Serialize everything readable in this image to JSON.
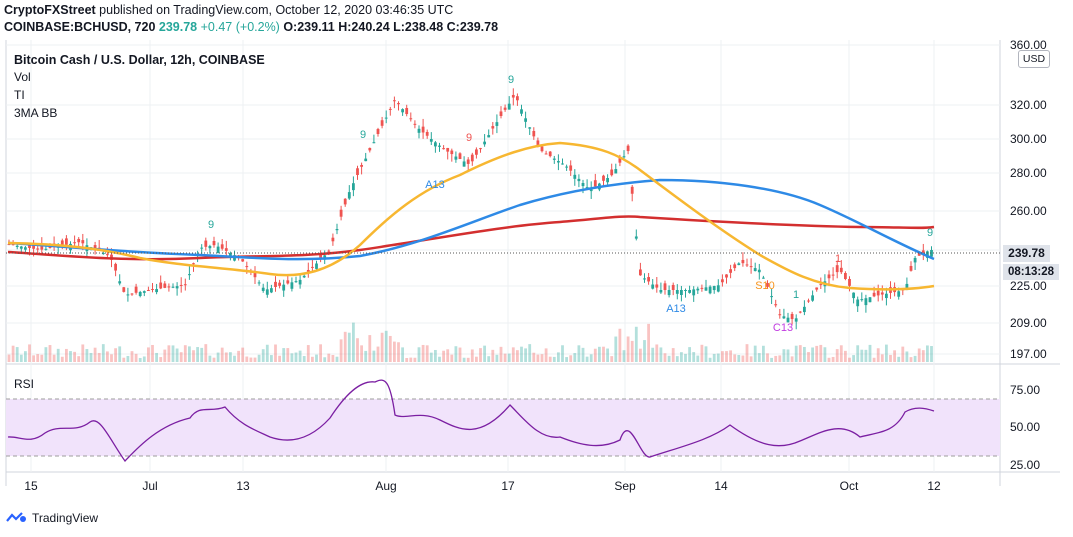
{
  "header": {
    "publisher": "CryptoFXStreet",
    "published_text": "published on TradingView.com, October 12, 2020 03:46:35 UTC",
    "symbol_line": "COINBASE:BCHUSD, 720",
    "last": "239.78",
    "change": "+0.47 (+0.2%)",
    "ohlc": "O:239.11 H:240.24 L:238.48 C:239.78"
  },
  "chart_title": "Bitcoin Cash / U.S. Dollar, 12h, COINBASE",
  "indicators": [
    "Vol",
    "TI",
    "3MA BB"
  ],
  "rsi_title": "RSI",
  "currency_badge": "USD",
  "price_label": "239.78",
  "countdown_label": "08:13:28",
  "brand": "TradingView",
  "colors": {
    "up": "#26a69a",
    "down": "#ef5350",
    "ma_fast": "#f7b731",
    "ma_mid": "#2e8ae6",
    "ma_slow": "#d32f2f",
    "rsi_line": "#7b1fa2",
    "rsi_band": "#f1e3fb",
    "grid": "#eef0f3"
  },
  "chart_data": {
    "type": "candlestick",
    "price_axis": {
      "ticks": [
        "197.00",
        "209.00",
        "225.00",
        "240.00",
        "260.00",
        "280.00",
        "300.00",
        "320.00",
        "360.00"
      ],
      "log_scale": true
    },
    "x_ticks": [
      "15",
      "Jul",
      "13",
      "Aug",
      "17",
      "Sep",
      "14",
      "Oct",
      "12"
    ],
    "rsi_axis": {
      "ticks": [
        "25.00",
        "50.00",
        "75.00"
      ],
      "band": [
        30,
        70
      ]
    },
    "annotations": [
      {
        "label": "9",
        "color": "#26a69a"
      },
      {
        "label": "9",
        "color": "#26a69a"
      },
      {
        "label": "9",
        "color": "#26a69a"
      },
      {
        "label": "9",
        "color": "#26a69a"
      },
      {
        "label": "9",
        "color": "#ef5350"
      },
      {
        "label": "A13",
        "color": "#2e8ae6"
      },
      {
        "label": "A13",
        "color": "#2e8ae6"
      },
      {
        "label": "S10",
        "color": "#f7931a"
      },
      {
        "label": "C13",
        "color": "#c13ce0"
      },
      {
        "label": "1",
        "color": "#26a69a"
      },
      {
        "label": "1",
        "color": "#ef5350"
      }
    ],
    "series": [
      {
        "name": "ma_slow",
        "values": [
          241,
          240,
          239,
          238,
          240,
          242,
          246,
          252,
          255,
          256,
          255,
          253,
          252,
          251,
          251,
          251
        ]
      },
      {
        "name": "ma_mid",
        "values": [
          244,
          243,
          241,
          239,
          238,
          241,
          250,
          265,
          275,
          276,
          273,
          265,
          251,
          242,
          238,
          237
        ]
      },
      {
        "name": "ma_fast",
        "values": [
          244,
          240,
          238,
          235,
          232,
          240,
          265,
          290,
          296,
          290,
          260,
          240,
          228,
          225,
          225,
          226
        ]
      },
      {
        "name": "rsi",
        "values": [
          48,
          50,
          45,
          49,
          62,
          55,
          50,
          78,
          82,
          60,
          60,
          52,
          32,
          45,
          40,
          48,
          52,
          62,
          60
        ]
      }
    ]
  }
}
